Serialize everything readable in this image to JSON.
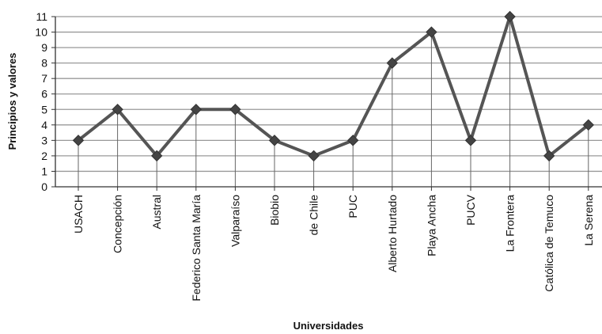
{
  "chart_data": {
    "type": "line",
    "categories": [
      "USACH",
      "Concepción",
      "Austral",
      "Federico Santa María",
      "Valparaíso",
      "Biobio",
      "de Chile",
      "PUC",
      "Alberto Hurtado",
      "Playa Ancha",
      "PUCV",
      "La Frontera",
      "Católica de Temuco",
      "La Serena"
    ],
    "values": [
      3,
      5,
      2,
      5,
      5,
      3,
      2,
      3,
      8,
      10,
      3,
      11,
      2,
      4
    ],
    "title": "",
    "xlabel": "Universidades",
    "ylabel": "Principios y valores",
    "ylim": [
      0,
      11
    ],
    "yticks": [
      0,
      1,
      2,
      3,
      4,
      5,
      6,
      7,
      8,
      9,
      10,
      11
    ],
    "grid": true,
    "legend": "none",
    "colors": {
      "line": "#555555",
      "marker": "#444444",
      "grid": "#999999",
      "axis": "#333333",
      "drop_line": "#666666"
    }
  }
}
